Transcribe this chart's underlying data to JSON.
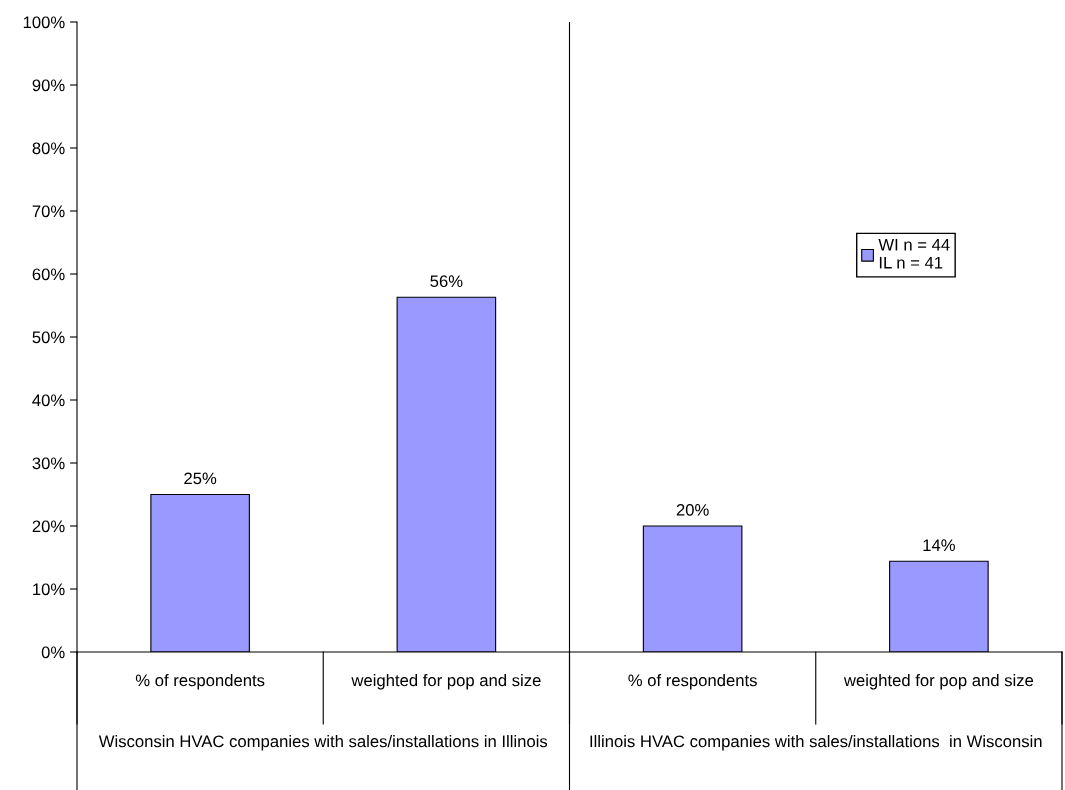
{
  "chart_data": {
    "type": "bar",
    "categories": [
      "% of respondents",
      "weighted for pop and size",
      "% of respondents",
      "weighted for pop and size"
    ],
    "series": [
      {
        "name": "WI n = 44\nIL n = 41",
        "color": "#9999ff",
        "values": [
          25,
          56.3,
          20,
          14.4
        ]
      }
    ],
    "value_labels": [
      "25%",
      "56%",
      "20%",
      "14%"
    ],
    "ylim": [
      0,
      100
    ],
    "yticks": [
      {
        "value": 0,
        "label": "0%"
      },
      {
        "value": 10,
        "label": "10%"
      },
      {
        "value": 20,
        "label": "20%"
      },
      {
        "value": 30,
        "label": "30%"
      },
      {
        "value": 40,
        "label": "40%"
      },
      {
        "value": 50,
        "label": "50%"
      },
      {
        "value": 60,
        "label": "60%"
      },
      {
        "value": 70,
        "label": "70%"
      },
      {
        "value": 80,
        "label": "80%"
      },
      {
        "value": 90,
        "label": "90%"
      },
      {
        "value": 100,
        "label": "100%"
      }
    ],
    "annotations": [
      "Wisconsin HVAC companies with sales/installations in Illinois",
      "Illinois HVAC companies with sales/installations  in Wisconsin"
    ],
    "legend": "right",
    "grid": false
  }
}
